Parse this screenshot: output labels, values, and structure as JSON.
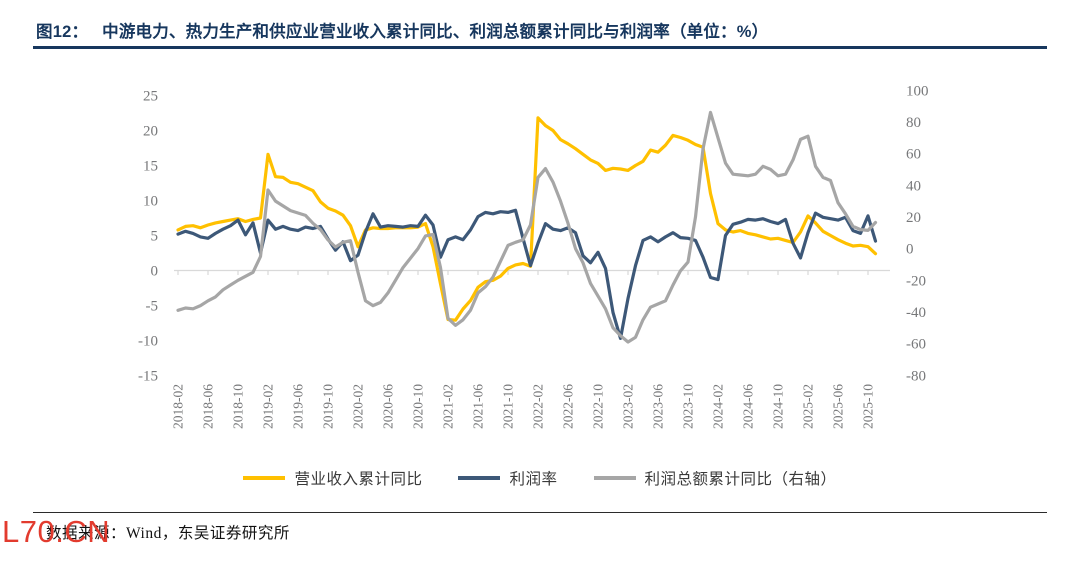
{
  "figure": {
    "label": "图12：",
    "title": "中游电力、热力生产和供应业营业收入累计同比、利润总额累计同比与利润率（单位：%）",
    "accent_color": "#17375E"
  },
  "chart_data": {
    "type": "line",
    "title": "中游电力、热力生产和供应业营业收入累计同比、利润总额累计同比与利润率",
    "unit": "%",
    "grid": false,
    "legend_position": "bottom",
    "months_start": "2018-02",
    "months_end": "2025-11",
    "x_tick_labels": [
      "2018-02",
      "2018-06",
      "2018-10",
      "2019-02",
      "2019-06",
      "2019-10",
      "2020-02",
      "2020-06",
      "2020-10",
      "2021-02",
      "2021-06",
      "2021-10",
      "2022-02",
      "2022-06",
      "2022-10",
      "2023-02",
      "2023-06",
      "2023-10",
      "2024-02",
      "2024-06",
      "2024-10",
      "2025-02",
      "2025-06",
      "2025-10"
    ],
    "x_tick_every_n_points": 4,
    "left_axis": {
      "min": -15,
      "max": 25,
      "step": 5,
      "ticks": [
        25,
        20,
        15,
        10,
        5,
        0,
        -5,
        -10,
        -15
      ]
    },
    "right_axis": {
      "min": -80,
      "max": 100,
      "step": 20,
      "ticks": [
        100,
        80,
        60,
        40,
        20,
        0,
        -20,
        -40,
        -60,
        -80
      ]
    },
    "axis_line_color": "#D9D9D9",
    "series": [
      {
        "name": "营业收入累计同比",
        "axis": "left",
        "color": "#FFC000",
        "values": [
          5.8,
          6.3,
          6.4,
          6.1,
          6.5,
          6.8,
          7.0,
          7.2,
          7.4,
          7.0,
          7.3,
          7.5,
          16.6,
          13.4,
          13.3,
          12.6,
          12.4,
          11.9,
          11.4,
          9.8,
          8.9,
          8.5,
          7.9,
          6.4,
          3.4,
          5.8,
          6.1,
          6.0,
          6.0,
          6.1,
          6.1,
          6.1,
          6.2,
          6.7,
          3.4,
          -1.9,
          -7.0,
          -7.1,
          -5.5,
          -4.3,
          -2.4,
          -1.6,
          -1.4,
          -0.8,
          0.3,
          0.8,
          1.0,
          0.6,
          21.8,
          20.7,
          20.0,
          18.7,
          18.1,
          17.4,
          16.6,
          15.8,
          15.3,
          14.3,
          14.6,
          14.5,
          14.3,
          15.0,
          15.6,
          17.2,
          16.9,
          17.9,
          19.3,
          19.0,
          18.6,
          18.0,
          17.6,
          11.0,
          6.7,
          5.8,
          5.5,
          5.7,
          5.3,
          5.1,
          4.8,
          4.5,
          4.6,
          4.3,
          4.0,
          5.5,
          7.8,
          6.8,
          5.6,
          5.0,
          4.4,
          3.9,
          3.5,
          3.6,
          3.4,
          2.4
        ]
      },
      {
        "name": "利润率",
        "axis": "left",
        "color": "#3D5878",
        "values": [
          5.2,
          5.6,
          5.3,
          4.8,
          4.6,
          5.3,
          5.9,
          6.4,
          7.2,
          5.1,
          6.8,
          2.5,
          7.2,
          5.9,
          6.3,
          5.9,
          5.7,
          6.2,
          6.0,
          6.3,
          4.5,
          2.9,
          4.1,
          1.4,
          2.2,
          5.5,
          8.1,
          6.2,
          6.4,
          6.3,
          6.2,
          6.4,
          6.3,
          7.9,
          6.5,
          1.9,
          4.4,
          4.8,
          4.4,
          5.8,
          7.7,
          8.3,
          8.1,
          8.4,
          8.3,
          8.6,
          4.6,
          0.7,
          3.9,
          6.7,
          5.9,
          5.7,
          6.1,
          5.4,
          2.1,
          1.1,
          2.6,
          0.3,
          -6.0,
          -9.7,
          -4.0,
          0.7,
          4.3,
          4.8,
          4.1,
          4.8,
          5.4,
          4.7,
          4.6,
          4.3,
          1.9,
          -1.0,
          -1.3,
          5.0,
          6.6,
          6.9,
          7.3,
          7.2,
          7.4,
          7.0,
          6.7,
          7.3,
          3.9,
          1.8,
          5.4,
          8.2,
          7.6,
          7.4,
          7.2,
          7.6,
          5.7,
          5.3,
          7.8,
          4.2
        ]
      },
      {
        "name": "利润总额累计同比（右轴）",
        "axis": "right",
        "color": "#A6A6A6",
        "values": [
          -39,
          -37.5,
          -38,
          -36,
          -33,
          -30.5,
          -26,
          -23,
          -20,
          -17.5,
          -15,
          -5,
          37,
          30,
          27,
          24,
          22.5,
          21,
          16,
          12,
          5.5,
          1,
          4,
          5,
          -15,
          -33,
          -36,
          -34,
          -28,
          -20,
          -12,
          -6,
          0,
          8,
          9,
          -12,
          -44,
          -48.5,
          -45,
          -39,
          -28,
          -24,
          -18,
          -8,
          2,
          4,
          5.5,
          15,
          45,
          50.5,
          42,
          30,
          16,
          0,
          -9,
          -22,
          -30,
          -38,
          -50,
          -55,
          -59,
          -56,
          -45,
          -37,
          -35,
          -33,
          -23,
          -14,
          -8.5,
          20,
          63,
          86,
          70,
          54,
          47,
          46.5,
          46,
          47,
          52,
          50,
          46,
          47,
          56,
          69,
          71,
          52,
          45,
          43,
          29,
          22,
          14,
          12,
          11.5,
          16.5
        ]
      }
    ]
  },
  "footer": {
    "source": "数据来源：Wind，东吴证券研究所"
  },
  "watermark": {
    "text": "L70.CN",
    "color": "#E23B2E"
  }
}
